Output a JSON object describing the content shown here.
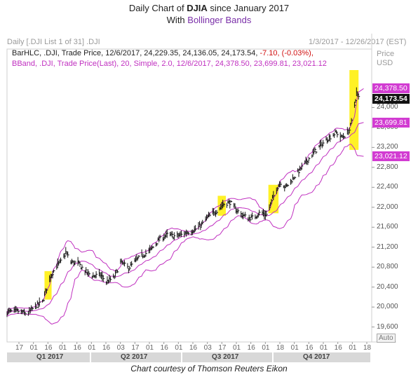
{
  "title": {
    "prefix": "Daily Chart of ",
    "ticker": "DJIA",
    "suffix": " since January 2017",
    "line2_prefix": "With ",
    "line2_highlight": "Bollinger Bands"
  },
  "header": {
    "left": "Daily [.DJI List 1 of 31] .DJI",
    "right": "1/3/2017 - 12/26/2017 (EST)"
  },
  "legend": {
    "line1_main": "BarHLC, .DJI, Trade Price, 12/6/2017, 24,229.35, 24,136.05, 24,173.54, ",
    "line1_change": "-7.10, (-0.03%),",
    "line2": "BBand, .DJI, Trade Price(Last), 20, Simple, 2.0, 12/6/2017, 24,378.50, 23,699.81, 23,021.12"
  },
  "axis": {
    "title_line1": "Price",
    "title_line2": "USD",
    "auto_label": "Auto"
  },
  "credit": "Chart courtesy of Thomson Reuters Eikon",
  "colors": {
    "bars": "#111111",
    "bands": "#c030c0",
    "highlight": "#ffee00",
    "tag_magenta": "#d23cd2"
  },
  "chart_data": {
    "type": "bar",
    "y_ticks": [
      "24,000",
      "23,600",
      "23,200",
      "22,800",
      "22,400",
      "22,000",
      "21,600",
      "21,200",
      "20,800",
      "20,400",
      "20,000",
      "19,600"
    ],
    "y_tick_values": [
      24000,
      23600,
      23200,
      22800,
      22400,
      22000,
      21600,
      21200,
      20800,
      20400,
      20000,
      19600
    ],
    "ylim": [
      19300,
      24750
    ],
    "value_tags": [
      {
        "text": "24,378.50",
        "value": 24378.5,
        "style": "mag"
      },
      {
        "text": "24,173.54",
        "value": 24173.54,
        "style": "blk"
      },
      {
        "text": "23,699.81",
        "value": 23699.81,
        "style": "mag"
      },
      {
        "text": "23,021.12",
        "value": 23021.12,
        "style": "mag"
      }
    ],
    "x_tick_labels": [
      "17",
      "01",
      "16",
      "01",
      "16",
      "01",
      "16",
      "03",
      "17",
      "01",
      "16",
      "01",
      "16",
      "03",
      "17",
      "01",
      "16",
      "01",
      "18",
      "01",
      "16",
      "01",
      "16",
      "01",
      "18"
    ],
    "quarters": [
      "Q1 2017",
      "Q2 2017",
      "Q3 2017",
      "Q4 2017"
    ],
    "highlight_periods": [
      {
        "start_day": 37,
        "end_day": 44,
        "low": 20150,
        "high": 20720
      },
      {
        "start_day": 208,
        "end_day": 216,
        "low": 21830,
        "high": 22230
      },
      {
        "start_day": 258,
        "end_day": 268,
        "low": 21880,
        "high": 22450
      },
      {
        "start_day": 338,
        "end_day": 347,
        "low": 23150,
        "high": 24750
      }
    ],
    "keypoints": [
      [
        0,
        19900
      ],
      [
        10,
        19920
      ],
      [
        20,
        19860
      ],
      [
        28,
        20020
      ],
      [
        35,
        20100
      ],
      [
        42,
        20580
      ],
      [
        48,
        20800
      ],
      [
        55,
        20950
      ],
      [
        58,
        21100
      ],
      [
        63,
        20900
      ],
      [
        70,
        20880
      ],
      [
        78,
        20700
      ],
      [
        85,
        20620
      ],
      [
        92,
        20650
      ],
      [
        98,
        20500
      ],
      [
        106,
        20600
      ],
      [
        112,
        20900
      ],
      [
        120,
        20780
      ],
      [
        128,
        20950
      ],
      [
        135,
        21050
      ],
      [
        142,
        21150
      ],
      [
        150,
        21350
      ],
      [
        158,
        21450
      ],
      [
        165,
        21420
      ],
      [
        172,
        21450
      ],
      [
        178,
        21500
      ],
      [
        185,
        21550
      ],
      [
        192,
        21650
      ],
      [
        198,
        21800
      ],
      [
        205,
        21900
      ],
      [
        208,
        21950
      ],
      [
        213,
        22060
      ],
      [
        220,
        22100
      ],
      [
        226,
        21950
      ],
      [
        232,
        21850
      ],
      [
        238,
        21780
      ],
      [
        244,
        21800
      ],
      [
        250,
        21900
      ],
      [
        256,
        21850
      ],
      [
        260,
        22050
      ],
      [
        265,
        22350
      ],
      [
        270,
        22500
      ],
      [
        275,
        22400
      ],
      [
        280,
        22520
      ],
      [
        287,
        22700
      ],
      [
        295,
        22900
      ],
      [
        303,
        23100
      ],
      [
        310,
        23250
      ],
      [
        318,
        23400
      ],
      [
        325,
        23500
      ],
      [
        330,
        23400
      ],
      [
        334,
        23450
      ],
      [
        338,
        23550
      ],
      [
        341,
        23800
      ],
      [
        343,
        24050
      ],
      [
        345,
        24300
      ],
      [
        347,
        24200
      ],
      [
        349,
        24173.54
      ]
    ],
    "bollinger_bands": {
      "period": 20,
      "type": "Simple",
      "std_dev": 2.0,
      "upper": 24378.5,
      "middle": 23699.81,
      "lower": 23021.12
    },
    "last_bar": {
      "date": "12/6/2017",
      "high": 24229.35,
      "low": 24136.05,
      "close": 24173.54,
      "change": -7.1,
      "change_pct": -0.03
    }
  }
}
